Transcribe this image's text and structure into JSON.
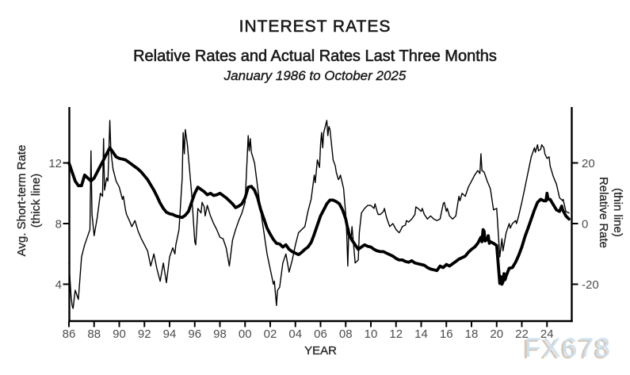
{
  "header": {
    "title": "INTEREST RATES",
    "subtitle": "Relative Rates and Actual Rates Last Three Months",
    "period": "January 1986 to October 2025"
  },
  "watermark": {
    "text": "FX678",
    "color": "#cde0ef",
    "shadow_color": "#c8b6a0"
  },
  "chart_data": {
    "type": "line",
    "title": "INTEREST RATES",
    "subtitle": "Relative Rates and Actual Rates Last Three Months",
    "period": "January 1986 to October 2025",
    "x_axis": {
      "label": "YEAR",
      "start": 1986.0,
      "step": 0.25,
      "ticks": [
        {
          "year": 1986,
          "label": "86"
        },
        {
          "year": 1988,
          "label": "88"
        },
        {
          "year": 1990,
          "label": "90"
        },
        {
          "year": 1992,
          "label": "92"
        },
        {
          "year": 1994,
          "label": "94"
        },
        {
          "year": 1996,
          "label": "96"
        },
        {
          "year": 1998,
          "label": "98"
        },
        {
          "year": 2000,
          "label": "00"
        },
        {
          "year": 2002,
          "label": "02"
        },
        {
          "year": 2004,
          "label": "04"
        },
        {
          "year": 2006,
          "label": "06"
        },
        {
          "year": 2008,
          "label": "08"
        },
        {
          "year": 2010,
          "label": "10"
        },
        {
          "year": 2012,
          "label": "12"
        },
        {
          "year": 2014,
          "label": "14"
        },
        {
          "year": 2016,
          "label": "16"
        },
        {
          "year": 2018,
          "label": "18"
        },
        {
          "year": 2020,
          "label": "20"
        },
        {
          "year": 2022,
          "label": "22"
        },
        {
          "year": 2024,
          "label": "24"
        }
      ]
    },
    "left_axis": {
      "title_line1": "Avg. Short-term Rate",
      "title_line2": "(thick line)",
      "ticks": [
        4,
        8,
        12
      ]
    },
    "right_axis": {
      "title_line1": "Relative Rate",
      "title_line2": "(thin line)",
      "ticks": [
        -20,
        0,
        20
      ]
    },
    "series": [
      {
        "name": "Avg. Short-term Rate",
        "style": "thick",
        "axis": "left",
        "values": [
          12.0,
          11.4,
          10.8,
          10.5,
          10.5,
          11.2,
          11.0,
          10.8,
          11.0,
          11.4,
          11.8,
          12.2,
          12.6,
          13.0,
          12.7,
          12.4,
          12.3,
          12.25,
          12.2,
          12.05,
          11.9,
          11.75,
          11.6,
          11.4,
          11.15,
          10.9,
          10.55,
          10.2,
          9.8,
          9.35,
          9.0,
          8.75,
          8.65,
          8.6,
          8.5,
          8.45,
          8.4,
          8.55,
          8.8,
          9.4,
          10.0,
          10.4,
          10.25,
          10.1,
          9.9,
          10.0,
          9.85,
          9.9,
          10.0,
          9.85,
          9.7,
          9.5,
          9.3,
          9.05,
          9.15,
          9.3,
          9.7,
          10.4,
          10.45,
          10.2,
          9.7,
          8.9,
          8.3,
          7.7,
          7.3,
          6.95,
          6.7,
          6.65,
          6.45,
          6.6,
          6.3,
          6.15,
          6.05,
          5.95,
          6.1,
          6.3,
          6.45,
          6.75,
          7.3,
          7.9,
          8.5,
          8.9,
          9.3,
          9.55,
          9.55,
          9.45,
          9.3,
          8.9,
          8.3,
          7.3,
          6.9,
          6.6,
          6.3,
          6.45,
          6.6,
          6.5,
          6.45,
          6.3,
          6.2,
          6.15,
          6.15,
          6.05,
          5.95,
          5.85,
          5.7,
          5.6,
          5.6,
          5.5,
          5.45,
          5.55,
          5.4,
          5.35,
          5.3,
          5.25,
          5.1,
          5.0,
          4.95,
          4.9,
          5.2,
          5.1,
          5.3,
          5.2,
          5.35,
          5.5,
          5.65,
          5.75,
          5.85,
          6.1,
          6.3,
          6.45,
          6.7,
          7.1,
          7.5,
          6.95,
          6.8,
          6.7,
          6.55,
          4.05,
          4.15,
          4.55,
          5.05,
          5.1,
          5.45,
          5.9,
          6.45,
          7.15,
          7.7,
          8.3,
          8.9,
          9.4,
          9.6,
          9.5,
          10.0,
          9.6,
          9.25,
          8.9,
          8.8,
          8.9,
          8.5,
          8.3
        ],
        "extra_points": [
          [
            2018.83,
            6.8
          ],
          [
            2018.92,
            7.6
          ],
          [
            2019.08,
            6.85
          ],
          [
            2019.33,
            7.2
          ],
          [
            2019.42,
            6.7
          ],
          [
            2020.33,
            4.5
          ],
          [
            2020.42,
            4.0
          ],
          [
            2020.58,
            4.7
          ],
          [
            2020.67,
            4.3
          ],
          [
            2023.92,
            9.5
          ],
          [
            2024.08,
            9.6
          ],
          [
            2025.17,
            9.15
          ]
        ]
      },
      {
        "name": "Relative Rate",
        "style": "thin",
        "axis": "right",
        "values": [
          -13,
          -27,
          -22,
          -25,
          -11,
          -7,
          -4,
          24,
          -4,
          2,
          10,
          28,
          15,
          34,
          18,
          14,
          12,
          8,
          4.5,
          1.5,
          -1,
          1,
          -2.5,
          -5,
          -7,
          -9,
          -14,
          -10,
          -15,
          -19,
          -13,
          -19.5,
          -11,
          -8,
          -7,
          -2,
          15,
          31,
          22,
          10,
          -6,
          5,
          3.5,
          5.5,
          6,
          2.5,
          0,
          -2,
          -4.5,
          -5,
          -8,
          -14,
          -5.5,
          -2,
          1,
          3.5,
          7,
          29,
          23.5,
          20,
          12,
          4,
          -3,
          -10,
          -15,
          -20,
          -27,
          -21,
          -13,
          -10,
          -16,
          -12,
          -7,
          -3,
          -2,
          -1,
          4,
          8,
          16,
          21,
          26,
          30,
          34,
          31,
          21,
          17,
          15,
          13,
          3,
          -1.5,
          -1,
          -13,
          -12,
          3.5,
          5,
          6,
          6,
          5,
          4,
          3,
          4,
          2,
          -1,
          0,
          -2,
          -3,
          -1,
          -0.5,
          0.5,
          1.5,
          3,
          5,
          4,
          3,
          1.5,
          2.5,
          1.5,
          1,
          1.5,
          6.5,
          4,
          2.5,
          1.5,
          2.5,
          9,
          10,
          9,
          12,
          14,
          16,
          17.5,
          23,
          17,
          14,
          11.5,
          4.5,
          5,
          -11,
          -9,
          -3,
          0,
          0,
          1,
          2.5,
          7,
          12,
          17,
          22,
          25,
          26,
          24.5,
          25,
          21.5,
          19,
          15.5,
          13,
          8.5,
          7.5,
          4,
          3.5
        ],
        "extra_points": [
          [
            1986.17,
            -24
          ],
          [
            1986.33,
            -28
          ],
          [
            1987.67,
            -2
          ],
          [
            1987.83,
            3
          ],
          [
            1988.67,
            9
          ],
          [
            1988.83,
            11
          ],
          [
            1989.1,
            14
          ],
          [
            1989.33,
            24
          ],
          [
            1990.33,
            9
          ],
          [
            1990.58,
            3
          ],
          [
            1994.42,
            -10
          ],
          [
            1995.08,
            30
          ],
          [
            1995.17,
            23
          ],
          [
            1995.42,
            26
          ],
          [
            1996.08,
            -7
          ],
          [
            1996.58,
            7
          ],
          [
            1996.83,
            2.5
          ],
          [
            2000.33,
            24
          ],
          [
            2000.42,
            28
          ],
          [
            2002.33,
            -19
          ],
          [
            2002.58,
            -22
          ],
          [
            2005.58,
            13.5
          ],
          [
            2005.92,
            18.5
          ],
          [
            2006.08,
            30
          ],
          [
            2006.17,
            25
          ],
          [
            2006.58,
            29
          ],
          [
            2006.67,
            32
          ],
          [
            2007.17,
            19
          ],
          [
            2007.42,
            14.5
          ],
          [
            2007.58,
            16
          ],
          [
            2007.83,
            11.5
          ],
          [
            2008.08,
            -3
          ],
          [
            2008.17,
            -14
          ],
          [
            2008.42,
            -5.2
          ],
          [
            2009.08,
            -3
          ],
          [
            2010.33,
            6.5
          ],
          [
            2010.58,
            3
          ],
          [
            2011.08,
            5
          ],
          [
            2012.33,
            -2.5
          ],
          [
            2012.83,
            1
          ],
          [
            2013.58,
            5.5
          ],
          [
            2014.08,
            5
          ],
          [
            2015.83,
            7
          ],
          [
            2016.08,
            5
          ],
          [
            2017.08,
            7.5
          ],
          [
            2018.67,
            16.5
          ],
          [
            2018.83,
            17.5
          ],
          [
            2020.42,
            -5
          ],
          [
            2021.08,
            -1.5
          ],
          [
            2021.58,
            0
          ],
          [
            2023.08,
            23.5
          ],
          [
            2023.33,
            24
          ],
          [
            2023.58,
            26
          ],
          [
            2023.83,
            23
          ],
          [
            2024.17,
            22
          ],
          [
            2025.28,
            8
          ]
        ]
      }
    ],
    "layout": {
      "grid": false,
      "legend": "axis-labels",
      "line_color": "#000000"
    }
  }
}
